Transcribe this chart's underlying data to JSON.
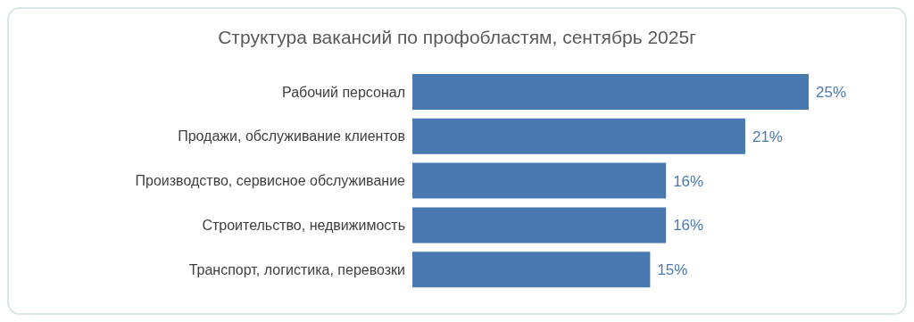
{
  "chart_data": {
    "type": "bar",
    "orientation": "horizontal",
    "title": "Структура вакансий по профобластям, сентябрь 2025г",
    "categories": [
      "Рабочий персонал",
      "Продажи, обслуживание клиентов",
      "Производство, сервисное обслуживание",
      "Строительство, недвижимость",
      "Транспорт, логистика, перевозки"
    ],
    "values": [
      25,
      21,
      16,
      16,
      15
    ],
    "value_labels": [
      "25%",
      "21%",
      "16%",
      "16%",
      "15%"
    ],
    "color": "#4a78b0"
  }
}
